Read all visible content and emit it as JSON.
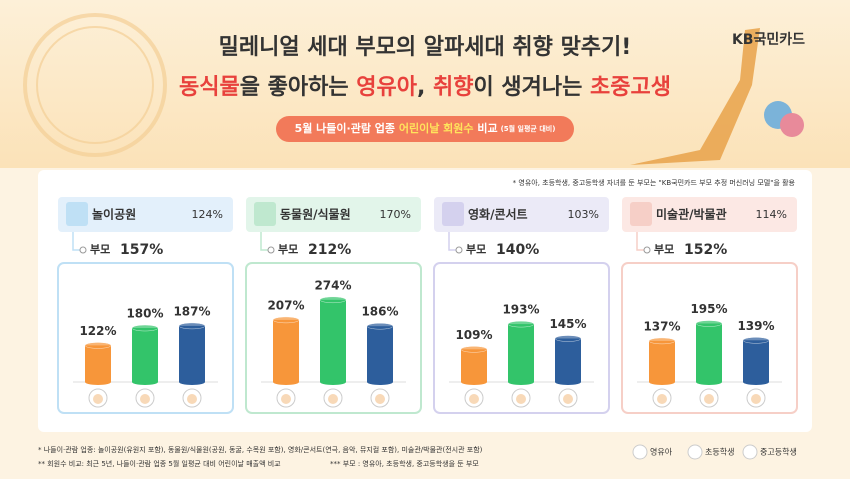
{
  "header": {
    "title": "밀레니얼 세대 부모의 알파세대 취향 맞추기!",
    "subtitle": [
      {
        "text": "동식물",
        "color": "#e8413c"
      },
      {
        "text": "을 좋아하는 ",
        "color": "#333333"
      },
      {
        "text": "영유아",
        "color": "#e8413c"
      },
      {
        "text": ", ",
        "color": "#333333"
      },
      {
        "text": "취향",
        "color": "#e8413c"
      },
      {
        "text": "이 생겨나는 ",
        "color": "#333333"
      },
      {
        "text": "초중고생",
        "color": "#e8413c"
      }
    ],
    "brand": "KB국민카드",
    "badge": {
      "text": "5월 나들이·관람 업종 ",
      "highlight": "어린이날 회원수",
      "tail": " 비교",
      "small": "(5월 일평균 대비)"
    }
  },
  "note": "* 영유아, 초등학생, 중고등학생 자녀를 둔 부모는 \"KB국민카드 부모 추정 머신러닝 모델\"을 활용",
  "legend": [
    "영유아",
    "초등학생",
    "중고등학생"
  ],
  "chart_data": [
    {
      "type": "bar",
      "title": "놀이공원",
      "total": "124%",
      "parent_label": "부모",
      "parent_value": "157%",
      "theme": "#e3f0fb",
      "border": "#bfe0f5",
      "values": [
        122,
        180,
        187
      ],
      "value_labels": [
        "122%",
        "180%",
        "187%"
      ],
      "colors": [
        "#f7963a",
        "#33c46a",
        "#2d5e9c"
      ]
    },
    {
      "type": "bar",
      "title": "동물원/식물원",
      "total": "170%",
      "parent_label": "부모",
      "parent_value": "212%",
      "theme": "#e2f5ea",
      "border": "#bfe8cf",
      "values": [
        207,
        274,
        186
      ],
      "value_labels": [
        "207%",
        "274%",
        "186%"
      ],
      "colors": [
        "#f7963a",
        "#33c46a",
        "#2d5e9c"
      ]
    },
    {
      "type": "bar",
      "title": "영화/콘서트",
      "total": "103%",
      "parent_label": "부모",
      "parent_value": "140%",
      "theme": "#ebeaf7",
      "border": "#d4d1ee",
      "values": [
        109,
        193,
        145
      ],
      "value_labels": [
        "109%",
        "193%",
        "145%"
      ],
      "colors": [
        "#f7963a",
        "#33c46a",
        "#2d5e9c"
      ]
    },
    {
      "type": "bar",
      "title": "미술관/박물관",
      "total": "114%",
      "parent_label": "부모",
      "parent_value": "152%",
      "theme": "#fce8e4",
      "border": "#f6cfc7",
      "values": [
        137,
        195,
        139
      ],
      "value_labels": [
        "137%",
        "195%",
        "139%"
      ],
      "colors": [
        "#f7963a",
        "#33c46a",
        "#2d5e9c"
      ]
    }
  ],
  "footnotes": [
    "* 나들이·관람 업종: 놀이공원(유원지 포함), 동물원/식물원(공원, 동굴, 수목원 포함), 영화/콘서트(연극, 음악, 뮤지컬 포함), 미술관/박물관(전시관 포함)",
    "** 회원수 비교: 최근 5년, 나들이·관람 업종 5월 일평균 대비 어린이날 매출액 비교",
    "*** 부모 : 영유아, 초등학생, 중고등학생을 둔 부모"
  ]
}
